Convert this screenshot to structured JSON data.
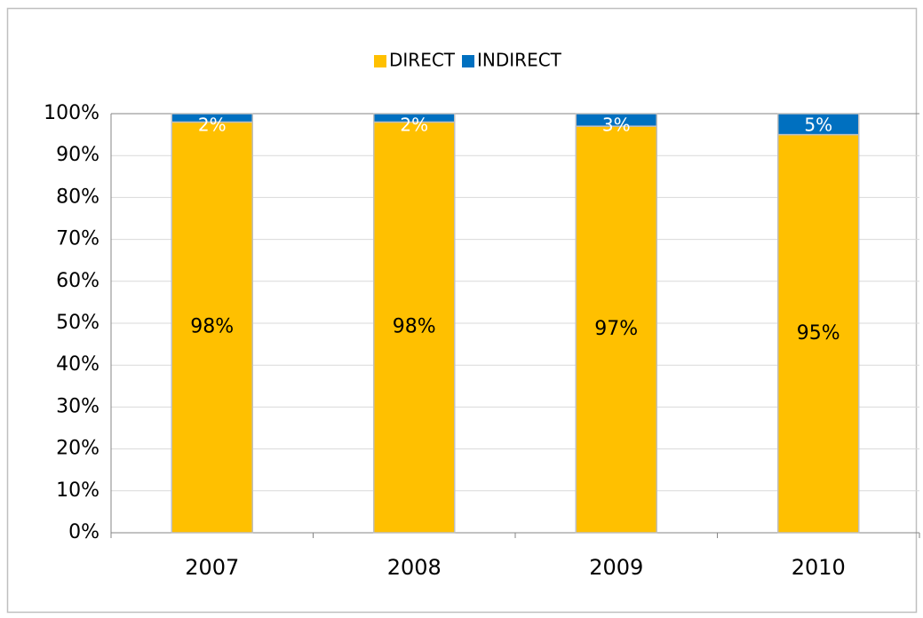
{
  "chart_data": {
    "type": "bar",
    "stacked": true,
    "categories": [
      "2007",
      "2008",
      "2009",
      "2010"
    ],
    "series": [
      {
        "name": "DIRECT",
        "color": "#ffc000",
        "values": [
          98,
          98,
          97,
          95
        ],
        "value_labels": [
          "98%",
          "98%",
          "97%",
          "95%"
        ]
      },
      {
        "name": "INDIRECT",
        "color": "#0070c0",
        "values": [
          2,
          2,
          3,
          5
        ],
        "value_labels": [
          "2%",
          "2%",
          "3%",
          "5%"
        ]
      }
    ],
    "ylim": [
      0,
      100
    ],
    "yticks": [
      {
        "value": 0,
        "label": "0%"
      },
      {
        "value": 10,
        "label": "10%"
      },
      {
        "value": 20,
        "label": "20%"
      },
      {
        "value": 30,
        "label": "30%"
      },
      {
        "value": 40,
        "label": "40%"
      },
      {
        "value": 50,
        "label": "50%"
      },
      {
        "value": 60,
        "label": "60%"
      },
      {
        "value": 70,
        "label": "70%"
      },
      {
        "value": 80,
        "label": "80%"
      },
      {
        "value": 90,
        "label": "90%"
      },
      {
        "value": 100,
        "label": "100%"
      }
    ],
    "grid": true,
    "legend": "top"
  }
}
